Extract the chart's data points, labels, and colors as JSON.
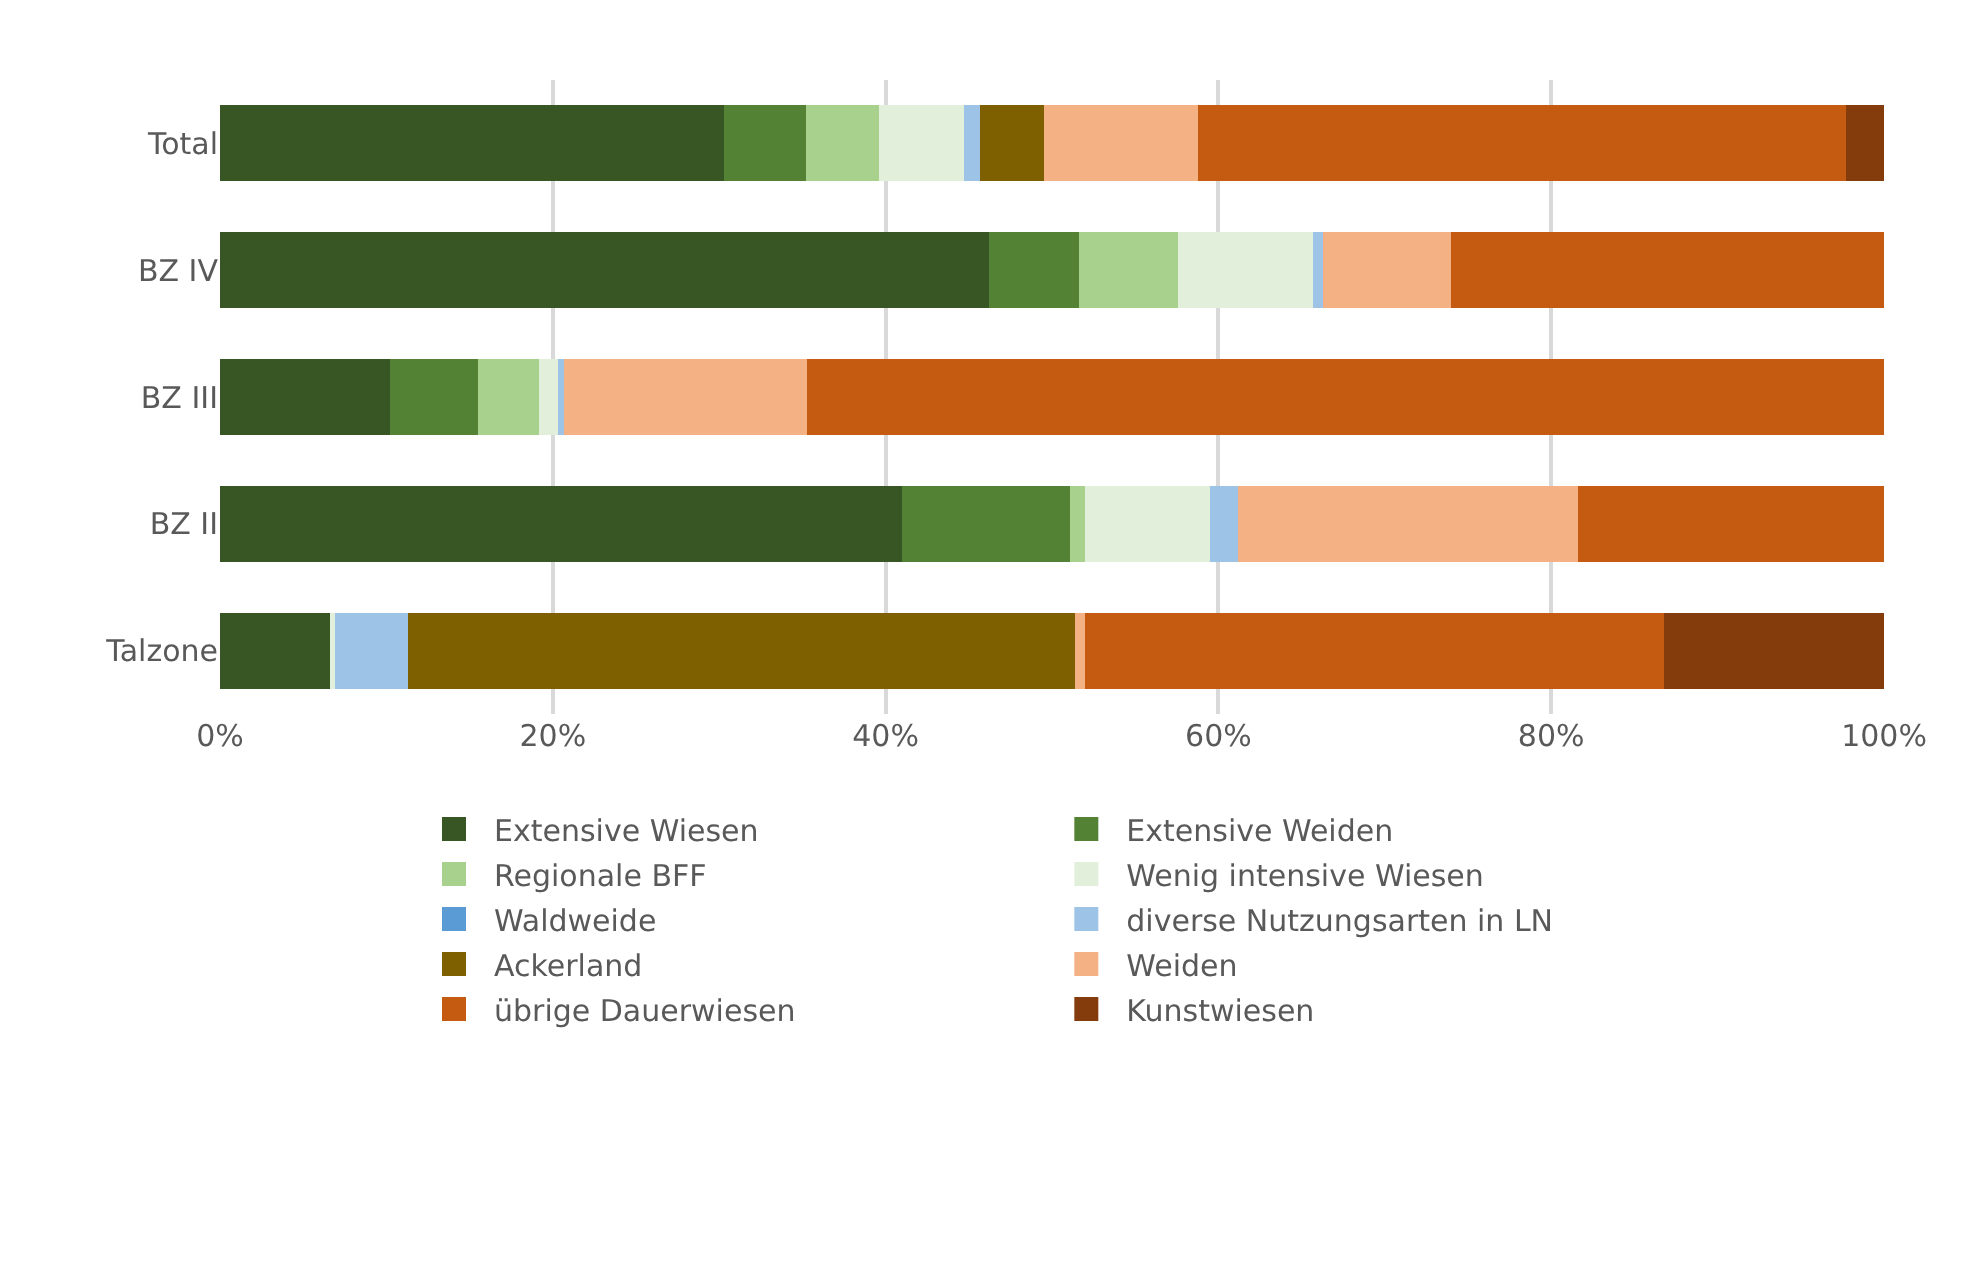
{
  "chart_data": {
    "type": "bar",
    "orientation": "horizontal",
    "stacked": true,
    "categories": [
      "Total",
      "BZ IV",
      "BZ III",
      "BZ II",
      "Talzone"
    ],
    "series": [
      {
        "name": "Extensive Wiesen",
        "color": "#375623",
        "values": [
          30.3,
          46.2,
          10.2,
          41.0,
          6.6
        ]
      },
      {
        "name": "Extensive Weiden",
        "color": "#548235",
        "values": [
          4.9,
          5.4,
          5.3,
          10.1,
          0
        ]
      },
      {
        "name": "Regionale BFF",
        "color": "#a9d18e",
        "values": [
          4.4,
          6.0,
          3.7,
          0.9,
          0
        ]
      },
      {
        "name": "Wenig intensive Wiesen",
        "color": "#e2efda",
        "values": [
          5.1,
          8.1,
          1.1,
          7.5,
          0.3
        ]
      },
      {
        "name": "Waldweide",
        "color": "#5b9bd5",
        "values": [
          null,
          null,
          null,
          null,
          null
        ]
      },
      {
        "name": "diverse Nutzungsarten in LN",
        "color": "#9dc3e6",
        "values": [
          1.0,
          0.6,
          0.4,
          1.7,
          4.4
        ]
      },
      {
        "name": "Ackerland",
        "color": "#7f6000",
        "values": [
          3.8,
          0,
          0,
          0,
          40.1
        ]
      },
      {
        "name": "Weiden",
        "color": "#f4b183",
        "values": [
          9.3,
          7.7,
          14.6,
          20.4,
          0.6
        ]
      },
      {
        "name": "übrige Dauerwiesen",
        "color": "#c55a11",
        "values": [
          38.9,
          26.0,
          64.7,
          18.4,
          34.8
        ]
      },
      {
        "name": "Kunstwiesen",
        "color": "#843c0c",
        "values": [
          2.3,
          0,
          0,
          0,
          13.2
        ]
      }
    ],
    "xlim": [
      0,
      100
    ],
    "xticks": [
      {
        "value": 0,
        "label": "0%"
      },
      {
        "value": 20,
        "label": "20%"
      },
      {
        "value": 40,
        "label": "40%"
      },
      {
        "value": 60,
        "label": "60%"
      },
      {
        "value": 80,
        "label": "80%"
      },
      {
        "value": 100,
        "label": "100%"
      }
    ],
    "grid": "x",
    "legend": "bottom"
  }
}
